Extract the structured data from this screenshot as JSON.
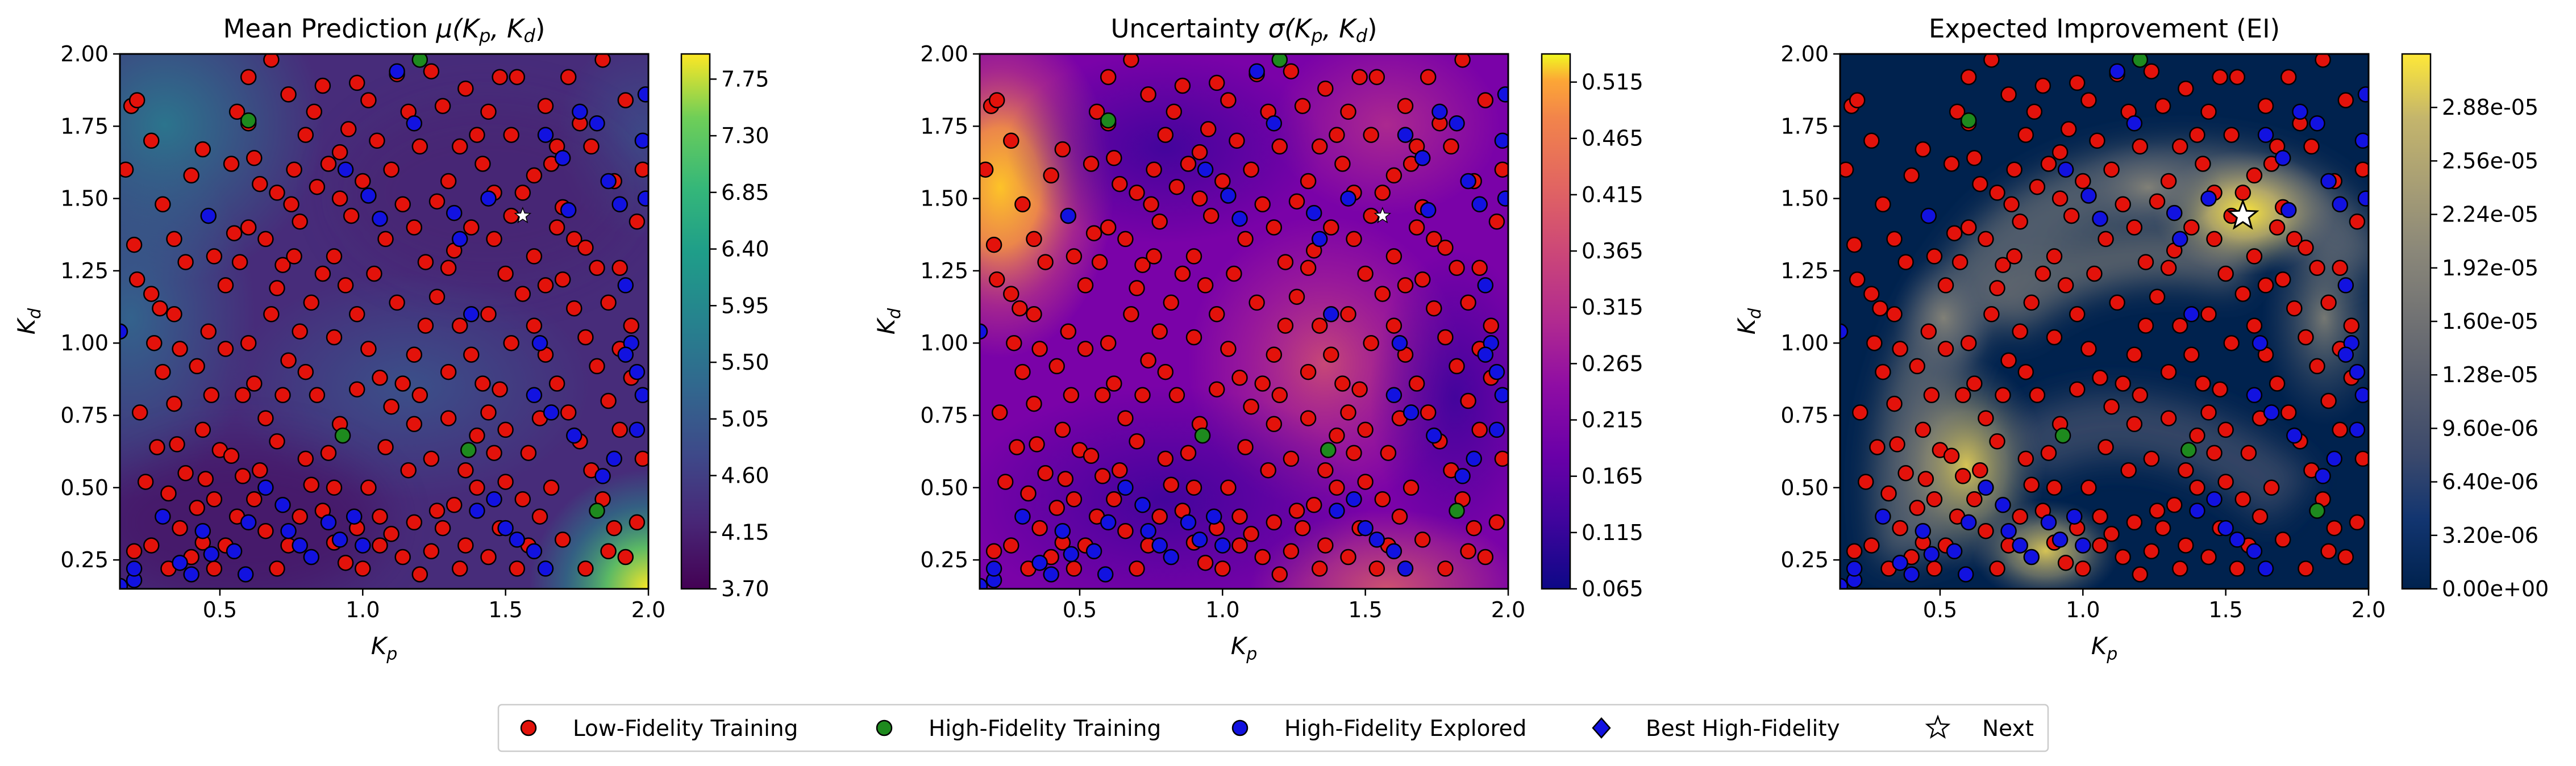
{
  "chart_data": [
    {
      "type": "heatmap",
      "title": "Mean Prediction μ(K_p, K_d)",
      "title_main": "Mean Prediction ",
      "title_math": "μ(K",
      "title_math_sub1": "p",
      "title_math_mid": ", K",
      "title_math_sub2": "d",
      "title_math_end": ")",
      "xlabel": "K_p",
      "ylabel": "K_d",
      "xlim": [
        0.15,
        2.0
      ],
      "ylim": [
        0.15,
        2.0
      ],
      "xticks": [
        "0.5",
        "1.0",
        "1.5",
        "2.0"
      ],
      "yticks": [
        "0.25",
        "0.50",
        "0.75",
        "1.00",
        "1.25",
        "1.50",
        "1.75",
        "2.00"
      ],
      "colormap": "viridis",
      "colorbar_range": [
        3.7,
        7.95
      ],
      "colorbar_ticks": [
        "3.70",
        "4.15",
        "4.60",
        "5.05",
        "5.50",
        "5.95",
        "6.40",
        "6.85",
        "7.30",
        "7.75"
      ],
      "next_point": [
        1.56,
        1.44
      ],
      "next_marker": "small-white-star"
    },
    {
      "type": "heatmap",
      "title": "Uncertainty σ(K_p, K_d)",
      "title_main": "Uncertainty ",
      "title_math": "σ(K",
      "title_math_sub1": "p",
      "title_math_mid": ", K",
      "title_math_sub2": "d",
      "title_math_end": ")",
      "xlabel": "K_p",
      "ylabel": "K_d",
      "xlim": [
        0.15,
        2.0
      ],
      "ylim": [
        0.15,
        2.0
      ],
      "xticks": [
        "0.5",
        "1.0",
        "1.5",
        "2.0"
      ],
      "yticks": [
        "0.25",
        "0.50",
        "0.75",
        "1.00",
        "1.25",
        "1.50",
        "1.75",
        "2.00"
      ],
      "colormap": "plasma",
      "colorbar_range": [
        0.065,
        0.54
      ],
      "colorbar_ticks": [
        "0.065",
        "0.115",
        "0.165",
        "0.215",
        "0.265",
        "0.315",
        "0.365",
        "0.415",
        "0.465",
        "0.515"
      ],
      "next_point": [
        1.56,
        1.44
      ],
      "next_marker": "small-white-star"
    },
    {
      "type": "heatmap",
      "title": "Expected Improvement (EI)",
      "title_main": "Expected Improvement (EI)",
      "xlabel": "K_p",
      "ylabel": "K_d",
      "xlim": [
        0.15,
        2.0
      ],
      "ylim": [
        0.15,
        2.0
      ],
      "xticks": [
        "0.5",
        "1.0",
        "1.5",
        "2.0"
      ],
      "yticks": [
        "0.25",
        "0.50",
        "0.75",
        "1.00",
        "1.25",
        "1.50",
        "1.75",
        "2.00"
      ],
      "colormap": "cividis",
      "colorbar_range": [
        0.0,
        3.2e-05
      ],
      "colorbar_ticks": [
        "0.00e+00",
        "3.20e-06",
        "6.40e-06",
        "9.60e-06",
        "1.28e-05",
        "1.60e-05",
        "1.92e-05",
        "2.24e-05",
        "2.56e-05",
        "2.88e-05"
      ],
      "next_point": [
        1.56,
        1.44
      ],
      "next_marker": "large-white-star"
    }
  ],
  "axis_label_math": {
    "x_base": "K",
    "x_sub": "p",
    "y_base": "K",
    "y_sub": "d"
  },
  "legend": {
    "placement": "bottom-center",
    "entries": [
      {
        "label": "Low-Fidelity Training",
        "marker": "circle",
        "color": "#e3120b"
      },
      {
        "label": "High-Fidelity Training",
        "marker": "circle",
        "color": "#1e8a1e"
      },
      {
        "label": "High-Fidelity Explored",
        "marker": "circle",
        "color": "#1212e0"
      },
      {
        "label": "Best High-Fidelity",
        "marker": "diamond",
        "color": "#1212e0"
      },
      {
        "label": "Next",
        "marker": "star",
        "color": "#ffffff"
      }
    ]
  },
  "scatter": {
    "low_fidelity": [
      [
        0.17,
        1.6
      ],
      [
        0.2,
        1.34
      ],
      [
        0.19,
        1.82
      ],
      [
        0.21,
        1.84
      ],
      [
        0.21,
        1.22
      ],
      [
        0.26,
        1.17
      ],
      [
        0.29,
        1.12
      ],
      [
        0.27,
        1.0
      ],
      [
        0.34,
        1.1
      ],
      [
        0.3,
        0.9
      ],
      [
        0.34,
        0.79
      ],
      [
        0.35,
        0.65
      ],
      [
        0.38,
        0.55
      ],
      [
        0.42,
        0.43
      ],
      [
        0.44,
        0.31
      ],
      [
        0.48,
        0.22
      ],
      [
        0.45,
        0.53
      ],
      [
        0.47,
        0.82
      ],
      [
        0.5,
        0.63
      ],
      [
        0.52,
        0.98
      ],
      [
        0.55,
        1.38
      ],
      [
        0.57,
        1.28
      ],
      [
        0.6,
        1.4
      ],
      [
        0.62,
        1.64
      ],
      [
        0.64,
        1.55
      ],
      [
        0.66,
        1.36
      ],
      [
        0.7,
        1.19
      ],
      [
        0.72,
        1.27
      ],
      [
        0.75,
        1.48
      ],
      [
        0.78,
        1.42
      ],
      [
        0.8,
        1.72
      ],
      [
        0.83,
        1.8
      ],
      [
        0.86,
        1.89
      ],
      [
        0.88,
        1.62
      ],
      [
        0.92,
        1.66
      ],
      [
        0.95,
        1.74
      ],
      [
        0.98,
        1.9
      ],
      [
        1.02,
        1.84
      ],
      [
        1.05,
        1.7
      ],
      [
        1.1,
        1.6
      ],
      [
        1.14,
        1.48
      ],
      [
        1.18,
        1.4
      ],
      [
        1.22,
        1.28
      ],
      [
        1.26,
        1.49
      ],
      [
        1.3,
        1.56
      ],
      [
        1.34,
        1.68
      ],
      [
        1.4,
        1.72
      ],
      [
        1.44,
        1.8
      ],
      [
        1.48,
        1.92
      ],
      [
        1.52,
        1.72
      ],
      [
        1.56,
        1.52
      ],
      [
        1.6,
        1.58
      ],
      [
        1.66,
        1.62
      ],
      [
        1.7,
        1.47
      ],
      [
        1.74,
        1.36
      ],
      [
        1.78,
        1.33
      ],
      [
        1.82,
        1.26
      ],
      [
        1.86,
        1.14
      ],
      [
        1.9,
        1.26
      ],
      [
        1.94,
        1.06
      ],
      [
        1.56,
        1.17
      ],
      [
        1.52,
        1.0
      ],
      [
        1.48,
        0.84
      ],
      [
        1.44,
        0.76
      ],
      [
        1.4,
        0.68
      ],
      [
        1.36,
        0.56
      ],
      [
        1.32,
        0.44
      ],
      [
        1.28,
        0.36
      ],
      [
        1.24,
        0.28
      ],
      [
        1.2,
        0.2
      ],
      [
        1.14,
        0.26
      ],
      [
        1.1,
        0.34
      ],
      [
        1.06,
        0.4
      ],
      [
        1.02,
        0.5
      ],
      [
        0.98,
        0.36
      ],
      [
        0.94,
        0.24
      ],
      [
        0.9,
        0.31
      ],
      [
        0.86,
        0.42
      ],
      [
        0.82,
        0.51
      ],
      [
        0.78,
        0.4
      ],
      [
        0.74,
        0.3
      ],
      [
        0.7,
        0.22
      ],
      [
        0.66,
        0.35
      ],
      [
        0.62,
        0.46
      ],
      [
        0.58,
        0.54
      ],
      [
        0.54,
        0.61
      ],
      [
        0.58,
        0.82
      ],
      [
        0.62,
        0.86
      ],
      [
        0.66,
        0.74
      ],
      [
        0.7,
        0.66
      ],
      [
        0.74,
        0.94
      ],
      [
        0.78,
        1.04
      ],
      [
        0.82,
        1.14
      ],
      [
        0.86,
        1.24
      ],
      [
        0.9,
        1.3
      ],
      [
        0.94,
        1.2
      ],
      [
        0.98,
        1.1
      ],
      [
        1.02,
        0.98
      ],
      [
        1.06,
        0.88
      ],
      [
        1.1,
        0.78
      ],
      [
        1.14,
        0.86
      ],
      [
        1.18,
        0.96
      ],
      [
        1.22,
        1.06
      ],
      [
        1.26,
        1.16
      ],
      [
        1.3,
        1.26
      ],
      [
        1.34,
        1.06
      ],
      [
        1.38,
        0.96
      ],
      [
        1.42,
        0.86
      ],
      [
        1.46,
        1.36
      ],
      [
        1.5,
        1.24
      ],
      [
        1.6,
        1.06
      ],
      [
        1.64,
        0.96
      ],
      [
        1.68,
        0.86
      ],
      [
        1.72,
        0.76
      ],
      [
        1.76,
        0.66
      ],
      [
        1.8,
        0.56
      ],
      [
        1.84,
        0.46
      ],
      [
        1.88,
        0.36
      ],
      [
        1.92,
        0.26
      ],
      [
        1.96,
        0.38
      ],
      [
        1.98,
        0.6
      ],
      [
        1.9,
        0.7
      ],
      [
        1.86,
        0.8
      ],
      [
        1.82,
        0.92
      ],
      [
        1.78,
        1.02
      ],
      [
        1.74,
        1.12
      ],
      [
        1.7,
        1.22
      ],
      [
        1.66,
        0.5
      ],
      [
        1.62,
        0.4
      ],
      [
        1.58,
        0.3
      ],
      [
        1.54,
        0.22
      ],
      [
        1.5,
        0.52
      ],
      [
        1.46,
        0.62
      ],
      [
        0.24,
        0.52
      ],
      [
        0.28,
        0.64
      ],
      [
        0.32,
        0.48
      ],
      [
        0.36,
        0.36
      ],
      [
        0.4,
        0.26
      ],
      [
        0.26,
        0.3
      ],
      [
        0.32,
        0.22
      ],
      [
        0.4,
        1.58
      ],
      [
        0.44,
        1.67
      ],
      [
        0.48,
        1.3
      ],
      [
        0.52,
        1.2
      ],
      [
        0.56,
        1.8
      ],
      [
        0.6,
        1.92
      ],
      [
        0.68,
        1.98
      ],
      [
        0.76,
        1.6
      ],
      [
        0.84,
        1.54
      ],
      [
        0.96,
        1.44
      ],
      [
        1.0,
        1.56
      ],
      [
        1.08,
        1.36
      ],
      [
        1.12,
        1.93
      ],
      [
        1.16,
        1.8
      ],
      [
        1.2,
        1.68
      ],
      [
        1.36,
        1.88
      ],
      [
        1.64,
        1.82
      ],
      [
        1.72,
        1.92
      ],
      [
        1.8,
        1.68
      ],
      [
        1.88,
        1.56
      ],
      [
        1.96,
        1.42
      ],
      [
        0.2,
        0.28
      ],
      [
        0.22,
        0.76
      ],
      [
        0.3,
        1.48
      ],
      [
        0.38,
        1.28
      ],
      [
        0.42,
        0.92
      ],
      [
        0.46,
        1.04
      ],
      [
        1.44,
        1.1
      ],
      [
        1.58,
        0.62
      ],
      [
        1.62,
        0.74
      ],
      [
        1.34,
        0.22
      ],
      [
        1.26,
        0.42
      ],
      [
        1.16,
        0.56
      ],
      [
        1.08,
        0.64
      ],
      [
        0.92,
        0.72
      ],
      [
        0.88,
        0.62
      ],
      [
        0.84,
        0.82
      ],
      [
        0.8,
        0.9
      ],
      [
        0.72,
        0.82
      ],
      [
        0.64,
        0.56
      ],
      [
        0.56,
        0.4
      ],
      [
        0.52,
        0.3
      ],
      [
        0.48,
        0.46
      ],
      [
        1.94,
        0.88
      ],
      [
        1.9,
        0.98
      ],
      [
        1.98,
        1.6
      ],
      [
        1.92,
        1.84
      ],
      [
        1.84,
        1.98
      ],
      [
        1.76,
        1.76
      ],
      [
        1.68,
        1.68
      ],
      [
        1.54,
        1.92
      ],
      [
        1.42,
        1.62
      ],
      [
        1.38,
        1.4
      ],
      [
        1.32,
        1.32
      ],
      [
        1.28,
        1.82
      ],
      [
        1.24,
        1.94
      ],
      [
        1.04,
        1.24
      ],
      [
        0.9,
        1.02
      ],
      [
        0.98,
        0.84
      ],
      [
        1.12,
        1.14
      ],
      [
        1.2,
        0.82
      ],
      [
        1.3,
        0.74
      ],
      [
        1.4,
        0.5
      ],
      [
        1.48,
        0.36
      ],
      [
        1.56,
        0.46
      ],
      [
        1.7,
        0.32
      ],
      [
        1.78,
        0.22
      ],
      [
        1.86,
        0.28
      ],
      [
        0.36,
        0.98
      ],
      [
        0.34,
        1.36
      ],
      [
        0.6,
        1.0
      ],
      [
        0.68,
        1.1
      ],
      [
        0.76,
        1.3
      ],
      [
        0.44,
        0.7
      ],
      [
        1.0,
        0.22
      ],
      [
        0.8,
        0.6
      ],
      [
        0.9,
        0.5
      ],
      [
        1.06,
        0.3
      ],
      [
        1.18,
        0.38
      ],
      [
        0.74,
        1.86
      ],
      [
        0.92,
        1.5
      ],
      [
        0.7,
        1.52
      ],
      [
        1.46,
        1.52
      ],
      [
        1.52,
        1.44
      ],
      [
        1.6,
        1.3
      ],
      [
        1.64,
        1.2
      ],
      [
        1.68,
        1.4
      ],
      [
        0.26,
        1.7
      ],
      [
        0.54,
        1.62
      ],
      [
        0.6,
        1.76
      ],
      [
        1.36,
        0.3
      ],
      [
        1.44,
        0.26
      ],
      [
        1.24,
        0.6
      ],
      [
        1.18,
        0.72
      ],
      [
        1.3,
        0.9
      ],
      [
        1.5,
        0.7
      ]
    ],
    "high_fidelity_training": [
      [
        0.6,
        1.77
      ],
      [
        0.93,
        0.68
      ],
      [
        1.37,
        0.63
      ],
      [
        1.82,
        0.42
      ],
      [
        1.2,
        1.98
      ]
    ],
    "high_fidelity_explored": [
      [
        0.15,
        1.04
      ],
      [
        0.15,
        0.16
      ],
      [
        0.2,
        0.18
      ],
      [
        0.46,
        1.44
      ],
      [
        0.44,
        0.35
      ],
      [
        0.47,
        0.27
      ],
      [
        0.55,
        0.28
      ],
      [
        0.59,
        0.2
      ],
      [
        0.6,
        0.38
      ],
      [
        0.66,
        0.5
      ],
      [
        0.72,
        0.44
      ],
      [
        0.74,
        0.35
      ],
      [
        0.78,
        0.3
      ],
      [
        0.82,
        0.26
      ],
      [
        0.88,
        0.38
      ],
      [
        0.92,
        0.32
      ],
      [
        0.97,
        0.4
      ],
      [
        1.0,
        0.3
      ],
      [
        1.02,
        1.51
      ],
      [
        1.06,
        1.43
      ],
      [
        0.94,
        1.6
      ],
      [
        1.12,
        1.94
      ],
      [
        1.18,
        1.76
      ],
      [
        1.32,
        1.45
      ],
      [
        1.34,
        1.36
      ],
      [
        1.38,
        1.1
      ],
      [
        1.44,
        1.5
      ],
      [
        1.4,
        0.42
      ],
      [
        1.46,
        0.46
      ],
      [
        1.5,
        0.36
      ],
      [
        1.54,
        0.32
      ],
      [
        1.6,
        0.28
      ],
      [
        1.64,
        0.22
      ],
      [
        1.72,
        1.46
      ],
      [
        1.82,
        1.76
      ],
      [
        1.86,
        1.56
      ],
      [
        1.9,
        1.48
      ],
      [
        1.92,
        1.2
      ],
      [
        1.94,
        1.0
      ],
      [
        1.98,
        0.82
      ],
      [
        1.99,
        1.86
      ],
      [
        1.99,
        1.5
      ],
      [
        1.92,
        0.96
      ],
      [
        1.96,
        0.7
      ],
      [
        1.88,
        0.6
      ],
      [
        1.84,
        0.54
      ],
      [
        1.74,
        0.68
      ],
      [
        1.66,
        0.76
      ],
      [
        1.6,
        0.82
      ],
      [
        1.62,
        1.0
      ],
      [
        1.96,
        0.9
      ],
      [
        1.7,
        1.64
      ],
      [
        1.64,
        1.72
      ],
      [
        1.76,
        1.8
      ],
      [
        0.3,
        0.4
      ],
      [
        0.36,
        0.24
      ],
      [
        0.4,
        0.2
      ],
      [
        0.2,
        0.22
      ],
      [
        1.98,
        1.7
      ]
    ]
  }
}
